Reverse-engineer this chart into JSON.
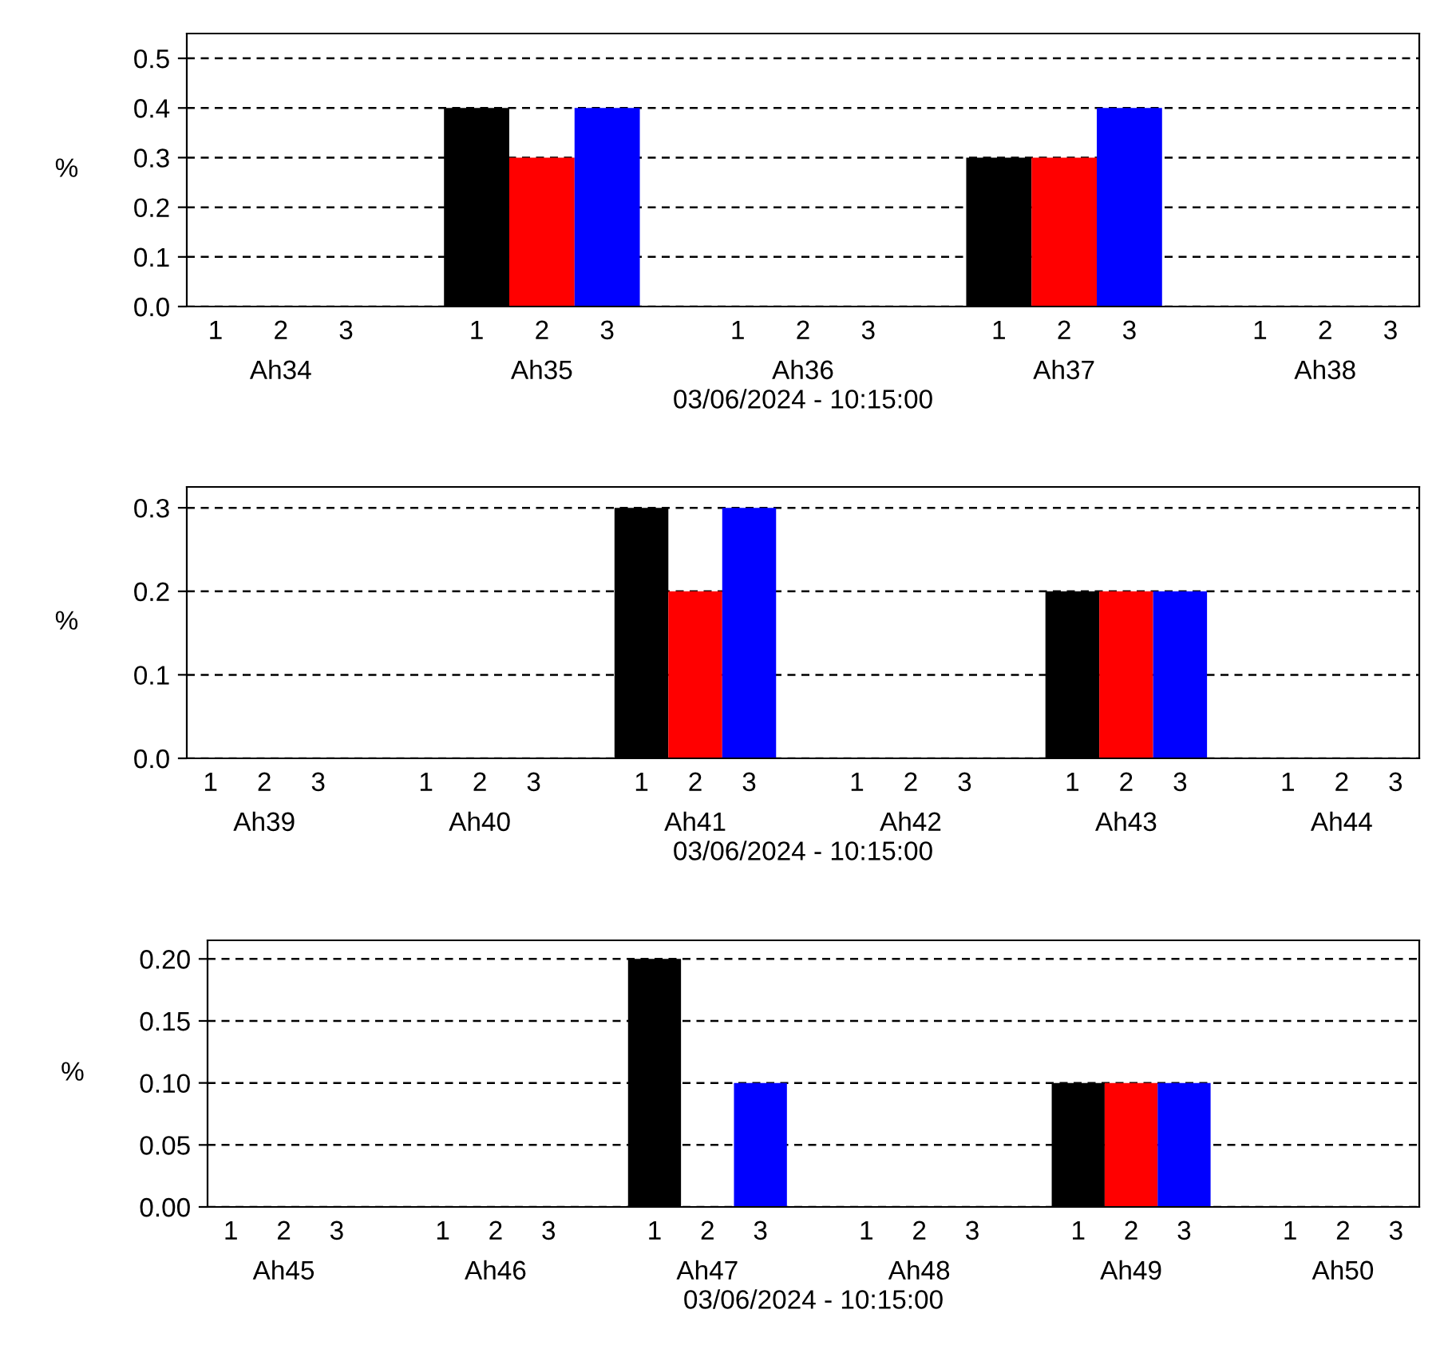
{
  "chart_data": [
    {
      "type": "bar",
      "categories": [
        "Ah34",
        "Ah35",
        "Ah36",
        "Ah37",
        "Ah38"
      ],
      "xlabel": "03/06/2024 - 10:15:00",
      "ylabel": "%",
      "ylim": [
        0,
        0.55
      ],
      "yticks": [
        {
          "value": 0,
          "label": "0.0"
        },
        {
          "value": 0.1,
          "label": "0.1"
        },
        {
          "value": 0.2,
          "label": "0.2"
        },
        {
          "value": 0.3,
          "label": "0.3"
        },
        {
          "value": 0.4,
          "label": "0.4"
        },
        {
          "value": 0.5,
          "label": "0.5"
        }
      ],
      "grid": "y",
      "series": [
        {
          "name": "1",
          "color": "#000000",
          "values": [
            0,
            0.4,
            0,
            0.3,
            0
          ]
        },
        {
          "name": "2",
          "color": "#ff0000",
          "values": [
            0,
            0.3,
            0,
            0.3,
            0
          ]
        },
        {
          "name": "3",
          "color": "#0000ff",
          "values": [
            0,
            0.4,
            0,
            0.4,
            0
          ]
        }
      ]
    },
    {
      "type": "bar",
      "categories": [
        "Ah39",
        "Ah40",
        "Ah41",
        "Ah42",
        "Ah43",
        "Ah44"
      ],
      "xlabel": "03/06/2024 - 10:15:00",
      "ylabel": "%",
      "ylim": [
        0,
        0.325
      ],
      "yticks": [
        {
          "value": 0,
          "label": "0.0"
        },
        {
          "value": 0.1,
          "label": "0.1"
        },
        {
          "value": 0.2,
          "label": "0.2"
        },
        {
          "value": 0.3,
          "label": "0.3"
        }
      ],
      "grid": "y",
      "series": [
        {
          "name": "1",
          "color": "#000000",
          "values": [
            0,
            0,
            0.3,
            0,
            0.2,
            0
          ]
        },
        {
          "name": "2",
          "color": "#ff0000",
          "values": [
            0,
            0,
            0.2,
            0,
            0.2,
            0
          ]
        },
        {
          "name": "3",
          "color": "#0000ff",
          "values": [
            0,
            0,
            0.3,
            0,
            0.2,
            0
          ]
        }
      ]
    },
    {
      "type": "bar",
      "categories": [
        "Ah45",
        "Ah46",
        "Ah47",
        "Ah48",
        "Ah49",
        "Ah50"
      ],
      "xlabel": "03/06/2024 - 10:15:00",
      "ylabel": "%",
      "ylim": [
        0,
        0.215
      ],
      "yticks": [
        {
          "value": 0,
          "label": "0.00"
        },
        {
          "value": 0.05,
          "label": "0.05"
        },
        {
          "value": 0.1,
          "label": "0.10"
        },
        {
          "value": 0.15,
          "label": "0.15"
        },
        {
          "value": 0.2,
          "label": "0.20"
        }
      ],
      "grid": "y",
      "series": [
        {
          "name": "1",
          "color": "#000000",
          "values": [
            0,
            0,
            0.2,
            0,
            0.1,
            0
          ]
        },
        {
          "name": "2",
          "color": "#ff0000",
          "values": [
            0,
            0,
            0,
            0,
            0.1,
            0
          ]
        },
        {
          "name": "3",
          "color": "#0000ff",
          "values": [
            0,
            0,
            0.1,
            0,
            0.1,
            0
          ]
        }
      ]
    }
  ]
}
